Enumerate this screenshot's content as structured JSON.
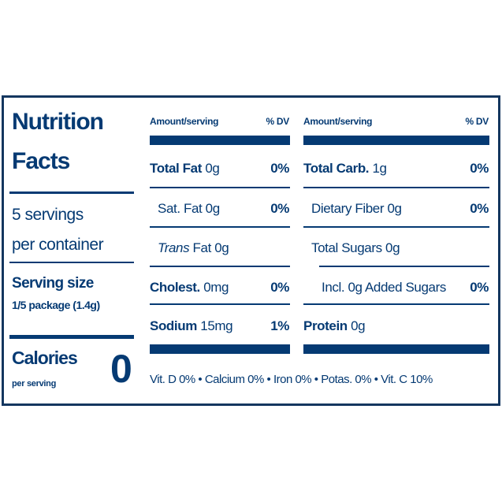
{
  "title": [
    "Nutrition",
    "Facts"
  ],
  "servings": [
    "5 servings",
    "per container"
  ],
  "serving_size": {
    "label": "Serving size",
    "value": "1/5 package (1.4g)"
  },
  "calories": {
    "label": "Calories",
    "sub": "per serving",
    "value": "0"
  },
  "header": {
    "amount": "Amount/serving",
    "dv": "% DV"
  },
  "left_rows": [
    {
      "name": "Total Fat",
      "amount": "0g",
      "dv": "0%"
    },
    {
      "name": "Sat. Fat",
      "amount": "0g",
      "dv": "0%"
    },
    {
      "name": "Trans",
      "suffix": "Fat 0g",
      "dv": ""
    },
    {
      "name": "Cholest.",
      "amount": "0mg",
      "dv": "0%"
    },
    {
      "name": "Sodium",
      "amount": "15mg",
      "dv": "1%"
    }
  ],
  "right_rows": [
    {
      "name": "Total Carb.",
      "amount": "1g",
      "dv": "0%"
    },
    {
      "name": "Dietary Fiber",
      "amount": "0g",
      "dv": "0%"
    },
    {
      "name": "Total Sugars",
      "amount": "0g",
      "dv": ""
    },
    {
      "name": "Incl. 0g Added Sugars",
      "amount": "",
      "dv": "0%"
    },
    {
      "name": "Protein",
      "amount": "0g",
      "dv": ""
    }
  ],
  "vitamins": "Vit. D 0% • Calcium 0% • Iron 0% • Potas. 0% • Vit. C 10%",
  "colors": {
    "text": "#053a73",
    "border": "#14365f"
  }
}
